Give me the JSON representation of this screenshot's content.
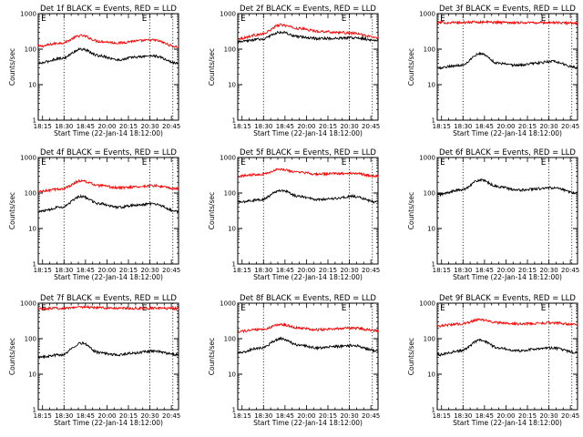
{
  "chart_data": [
    {
      "type": "line",
      "title": "Det 1f BLACK = Events, RED = LLD",
      "xlabel": "Start Time (22-Jan-14 18:12:00)",
      "ylabel": "Counts/sec",
      "yscale": "log",
      "ylim": [
        1,
        1000
      ],
      "xlim": [
        "18:12",
        "20:50"
      ],
      "ytick_labels": [
        "1",
        "10",
        "100",
        "1000"
      ],
      "xtick_labels": [
        "18:15",
        "18:30",
        "18:45",
        "20:00",
        "20:15",
        "20:30",
        "20:45"
      ],
      "vlines": [
        "18:30",
        "20:30",
        "20:46"
      ],
      "marker_labels": [
        "E",
        "E"
      ],
      "series": [
        {
          "color": "#ff0000",
          "x": [
            "18:12",
            "18:28",
            "18:42",
            "18:55",
            "20:08",
            "20:20",
            "20:32",
            "20:50"
          ],
          "y": [
            120,
            150,
            240,
            165,
            150,
            170,
            180,
            115
          ]
        },
        {
          "color": "#000000",
          "x": [
            "18:12",
            "18:28",
            "18:42",
            "18:55",
            "20:08",
            "20:20",
            "20:32",
            "20:50"
          ],
          "y": [
            40,
            55,
            100,
            65,
            50,
            60,
            65,
            40
          ]
        }
      ]
    },
    {
      "type": "line",
      "title": "Det 2f BLACK = Events, RED = LLD",
      "xlabel": "Start Time (22-Jan-14 18:12:00)",
      "ylabel": "Counts/sec",
      "yscale": "log",
      "ylim": [
        1,
        1000
      ],
      "xlim": [
        "18:12",
        "20:50"
      ],
      "ytick_labels": [
        "1",
        "10",
        "100",
        "1000"
      ],
      "xtick_labels": [
        "18:15",
        "18:30",
        "18:45",
        "20:00",
        "20:15",
        "20:30",
        "20:45"
      ],
      "vlines": [
        "18:30",
        "20:30",
        "20:46"
      ],
      "marker_labels": [
        "E",
        "E"
      ],
      "series": [
        {
          "color": "#ff0000",
          "x": [
            "18:12",
            "18:28",
            "18:42",
            "18:55",
            "20:08",
            "20:20",
            "20:32",
            "20:50"
          ],
          "y": [
            200,
            260,
            480,
            380,
            320,
            300,
            280,
            210
          ]
        },
        {
          "color": "#000000",
          "x": [
            "18:12",
            "18:28",
            "18:42",
            "18:55",
            "20:08",
            "20:20",
            "20:32",
            "20:50"
          ],
          "y": [
            160,
            190,
            300,
            220,
            200,
            200,
            210,
            180
          ]
        }
      ]
    },
    {
      "type": "line",
      "title": "Det 3f BLACK = Events, RED = LLD",
      "xlabel": "Start Time (22-Jan-14 18:12:00)",
      "ylabel": "Counts/sec",
      "yscale": "log",
      "ylim": [
        1,
        1000
      ],
      "xlim": [
        "18:12",
        "20:50"
      ],
      "ytick_labels": [
        "1",
        "10",
        "100",
        "1000"
      ],
      "xtick_labels": [
        "18:15",
        "18:30",
        "18:45",
        "20:00",
        "20:15",
        "20:30",
        "20:45"
      ],
      "vlines": [
        "18:30",
        "20:30",
        "20:46"
      ],
      "marker_labels": [
        "E",
        "E"
      ],
      "series": [
        {
          "color": "#ff0000",
          "x": [
            "18:12",
            "18:28",
            "18:42",
            "18:55",
            "20:08",
            "20:20",
            "20:32",
            "20:50"
          ],
          "y": [
            560,
            560,
            580,
            570,
            560,
            560,
            560,
            540
          ]
        },
        {
          "color": "#000000",
          "x": [
            "18:12",
            "18:28",
            "18:42",
            "18:55",
            "20:08",
            "20:20",
            "20:32",
            "20:50"
          ],
          "y": [
            30,
            35,
            75,
            40,
            35,
            40,
            45,
            30
          ]
        }
      ]
    },
    {
      "type": "line",
      "title": "Det 4f BLACK = Events, RED = LLD",
      "xlabel": "Start Time (22-Jan-14 18:12:00)",
      "ylabel": "Counts/sec",
      "yscale": "log",
      "ylim": [
        1,
        1000
      ],
      "xlim": [
        "18:12",
        "20:50"
      ],
      "ytick_labels": [
        "1",
        "10",
        "100",
        "1000"
      ],
      "xtick_labels": [
        "18:15",
        "18:30",
        "18:45",
        "20:00",
        "20:15",
        "20:30",
        "20:45"
      ],
      "vlines": [
        "18:30",
        "20:30",
        "20:46"
      ],
      "marker_labels": [
        "E",
        "E"
      ],
      "series": [
        {
          "color": "#ff0000",
          "x": [
            "18:12",
            "18:28",
            "18:42",
            "18:55",
            "20:08",
            "20:20",
            "20:32",
            "20:50"
          ],
          "y": [
            110,
            130,
            220,
            160,
            140,
            150,
            160,
            130
          ]
        },
        {
          "color": "#000000",
          "x": [
            "18:12",
            "18:28",
            "18:42",
            "18:55",
            "20:08",
            "20:20",
            "20:32",
            "20:50"
          ],
          "y": [
            30,
            40,
            80,
            50,
            40,
            45,
            50,
            30
          ]
        }
      ]
    },
    {
      "type": "line",
      "title": "Det 5f BLACK = Events, RED = LLD",
      "xlabel": "Start Time (22-Jan-14 18:12:00)",
      "ylabel": "Counts/sec",
      "yscale": "log",
      "ylim": [
        1,
        1000
      ],
      "xlim": [
        "18:12",
        "20:50"
      ],
      "ytick_labels": [
        "1",
        "10",
        "100",
        "1000"
      ],
      "xtick_labels": [
        "18:15",
        "18:30",
        "18:45",
        "20:00",
        "20:15",
        "20:30",
        "20:45"
      ],
      "vlines": [
        "18:30",
        "20:30",
        "20:46"
      ],
      "marker_labels": [
        "E",
        "E"
      ],
      "series": [
        {
          "color": "#ff0000",
          "x": [
            "18:12",
            "18:28",
            "18:42",
            "18:55",
            "20:08",
            "20:20",
            "20:32",
            "20:50"
          ],
          "y": [
            300,
            340,
            460,
            380,
            340,
            350,
            360,
            300
          ]
        },
        {
          "color": "#000000",
          "x": [
            "18:12",
            "18:28",
            "18:42",
            "18:55",
            "20:08",
            "20:20",
            "20:32",
            "20:50"
          ],
          "y": [
            55,
            65,
            120,
            80,
            65,
            70,
            80,
            55
          ]
        }
      ]
    },
    {
      "type": "line",
      "title": "Det 6f BLACK = Events, RED = LLD",
      "xlabel": "Start Time (22-Jan-14 18:12:00)",
      "ylabel": "Counts/sec",
      "yscale": "log",
      "ylim": [
        1,
        1000
      ],
      "xlim": [
        "18:12",
        "20:50"
      ],
      "ytick_labels": [
        "1",
        "10",
        "100",
        "1000"
      ],
      "xtick_labels": [
        "18:15",
        "18:30",
        "18:45",
        "20:00",
        "20:15",
        "20:30",
        "20:45"
      ],
      "vlines": [
        "18:30",
        "20:30",
        "20:46"
      ],
      "marker_labels": [
        "E",
        "E"
      ],
      "series": [
        {
          "color": "#000000",
          "x": [
            "18:12",
            "18:28",
            "18:42",
            "18:55",
            "20:08",
            "20:20",
            "20:32",
            "20:50"
          ],
          "y": [
            90,
            120,
            230,
            150,
            120,
            130,
            140,
            100
          ]
        }
      ]
    },
    {
      "type": "line",
      "title": "Det 7f BLACK = Events, RED = LLD",
      "xlabel": "Start Time (22-Jan-14 18:12:00)",
      "ylabel": "Counts/sec",
      "yscale": "log",
      "ylim": [
        1,
        1000
      ],
      "xlim": [
        "18:12",
        "20:50"
      ],
      "ytick_labels": [
        "1",
        "10",
        "100",
        "1000"
      ],
      "xtick_labels": [
        "18:15",
        "18:30",
        "18:45",
        "20:00",
        "20:15",
        "20:30",
        "20:45"
      ],
      "vlines": [
        "18:30",
        "20:30",
        "20:46"
      ],
      "marker_labels": [
        "E",
        "E"
      ],
      "series": [
        {
          "color": "#ff0000",
          "x": [
            "18:12",
            "18:28",
            "18:42",
            "18:55",
            "20:08",
            "20:20",
            "20:32",
            "20:50"
          ],
          "y": [
            700,
            720,
            780,
            740,
            720,
            720,
            720,
            700
          ]
        },
        {
          "color": "#000000",
          "x": [
            "18:12",
            "18:28",
            "18:42",
            "18:55",
            "20:08",
            "20:20",
            "20:32",
            "20:50"
          ],
          "y": [
            30,
            35,
            75,
            40,
            35,
            40,
            45,
            35
          ]
        }
      ]
    },
    {
      "type": "line",
      "title": "Det 8f BLACK = Events, RED = LLD",
      "xlabel": "Start Time (22-Jan-14 18:12:00)",
      "ylabel": "Counts/sec",
      "yscale": "log",
      "ylim": [
        1,
        1000
      ],
      "xlim": [
        "18:12",
        "20:50"
      ],
      "ytick_labels": [
        "1",
        "10",
        "100",
        "1000"
      ],
      "xtick_labels": [
        "18:15",
        "18:30",
        "18:45",
        "20:00",
        "20:15",
        "20:30",
        "20:45"
      ],
      "vlines": [
        "18:30",
        "20:30",
        "20:46"
      ],
      "marker_labels": [
        "E",
        "E"
      ],
      "series": [
        {
          "color": "#ff0000",
          "x": [
            "18:12",
            "18:28",
            "18:42",
            "18:55",
            "20:08",
            "20:20",
            "20:32",
            "20:50"
          ],
          "y": [
            160,
            180,
            250,
            200,
            180,
            190,
            200,
            170
          ]
        },
        {
          "color": "#000000",
          "x": [
            "18:12",
            "18:28",
            "18:42",
            "18:55",
            "20:08",
            "20:20",
            "20:32",
            "20:50"
          ],
          "y": [
            40,
            55,
            100,
            65,
            55,
            60,
            65,
            45
          ]
        }
      ]
    },
    {
      "type": "line",
      "title": "Det 9f BLACK = Events, RED = LLD",
      "xlabel": "Start Time (22-Jan-14 18:12:00)",
      "ylabel": "Counts/sec",
      "yscale": "log",
      "ylim": [
        1,
        1000
      ],
      "xlim": [
        "18:12",
        "20:50"
      ],
      "ytick_labels": [
        "1",
        "10",
        "100",
        "1000"
      ],
      "xtick_labels": [
        "18:15",
        "18:30",
        "18:45",
        "20:00",
        "20:15",
        "20:30",
        "20:45"
      ],
      "vlines": [
        "18:30",
        "20:30",
        "20:46"
      ],
      "marker_labels": [
        "E",
        "E"
      ],
      "series": [
        {
          "color": "#ff0000",
          "x": [
            "18:12",
            "18:28",
            "18:42",
            "18:55",
            "20:08",
            "20:20",
            "20:32",
            "20:50"
          ],
          "y": [
            230,
            260,
            340,
            280,
            260,
            270,
            280,
            250
          ]
        },
        {
          "color": "#000000",
          "x": [
            "18:12",
            "18:28",
            "18:42",
            "18:55",
            "20:08",
            "20:20",
            "20:32",
            "20:50"
          ],
          "y": [
            35,
            45,
            90,
            55,
            45,
            50,
            55,
            40
          ]
        }
      ]
    }
  ]
}
